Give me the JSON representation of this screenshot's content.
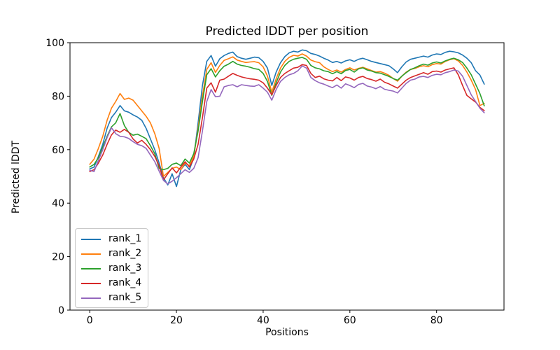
{
  "chart_data": {
    "type": "line",
    "title": "Predicted lDDT per position",
    "xlabel": "Positions",
    "ylabel": "Predicted lDDT",
    "xlim": [
      -4.55,
      95.55
    ],
    "ylim": [
      0,
      100
    ],
    "xticks": [
      0,
      20,
      40,
      60,
      80
    ],
    "yticks": [
      0,
      20,
      40,
      60,
      80,
      100
    ],
    "grid": false,
    "legend_position": "lower-left",
    "x": [
      0,
      1,
      2,
      3,
      4,
      5,
      6,
      7,
      8,
      9,
      10,
      11,
      12,
      13,
      14,
      15,
      16,
      17,
      18,
      19,
      20,
      21,
      22,
      23,
      24,
      25,
      26,
      27,
      28,
      29,
      30,
      31,
      32,
      33,
      34,
      35,
      36,
      37,
      38,
      39,
      40,
      41,
      42,
      43,
      44,
      45,
      46,
      47,
      48,
      49,
      50,
      51,
      52,
      53,
      54,
      55,
      56,
      57,
      58,
      59,
      60,
      61,
      62,
      63,
      64,
      65,
      66,
      67,
      68,
      69,
      70,
      71,
      72,
      73,
      74,
      75,
      76,
      77,
      78,
      79,
      80,
      81,
      82,
      83,
      84,
      85,
      86,
      87,
      88,
      89,
      90,
      91
    ],
    "series": [
      {
        "name": "rank_1",
        "color": "#1f77b4",
        "values": [
          52.8,
          53.5,
          57.5,
          62.0,
          68.0,
          72.0,
          74.0,
          76.5,
          74.5,
          74.0,
          73.0,
          72.2,
          71.0,
          68.0,
          64.0,
          60.0,
          55.0,
          49.5,
          46.8,
          51.0,
          46.2,
          52.5,
          54.5,
          52.5,
          57.0,
          70.0,
          84.0,
          93.0,
          95.2,
          91.2,
          94.0,
          95.2,
          96.0,
          96.5,
          94.8,
          94.2,
          93.8,
          94.2,
          94.6,
          94.4,
          93.0,
          90.5,
          84.0,
          89.0,
          92.5,
          94.8,
          96.2,
          96.8,
          96.5,
          97.3,
          97.0,
          96.0,
          95.6,
          95.0,
          94.2,
          93.5,
          92.6,
          93.0,
          92.4,
          93.2,
          93.6,
          93.0,
          93.8,
          94.2,
          93.6,
          93.0,
          92.6,
          92.2,
          91.8,
          91.4,
          90.2,
          88.8,
          91.0,
          92.8,
          93.8,
          94.2,
          94.6,
          95.0,
          94.6,
          95.4,
          95.8,
          95.6,
          96.4,
          96.8,
          96.6,
          96.2,
          95.4,
          94.2,
          92.5,
          89.5,
          87.9,
          84.5
        ]
      },
      {
        "name": "rank_2",
        "color": "#ff7f0e",
        "values": [
          54.5,
          56.5,
          60.5,
          65.0,
          71.0,
          75.5,
          78.0,
          81.0,
          78.8,
          79.3,
          78.5,
          76.5,
          74.5,
          72.5,
          70.0,
          66.0,
          60.5,
          50.0,
          51.5,
          53.0,
          53.5,
          52.5,
          55.0,
          54.0,
          57.5,
          68.0,
          80.0,
          90.0,
          92.5,
          88.9,
          91.5,
          93.4,
          94.0,
          94.7,
          93.5,
          93.0,
          92.6,
          92.8,
          92.9,
          92.5,
          91.0,
          87.5,
          81.5,
          86.5,
          90.5,
          93.0,
          94.5,
          95.3,
          95.0,
          95.8,
          95.0,
          93.5,
          92.9,
          92.5,
          91.0,
          90.0,
          89.2,
          89.8,
          89.0,
          90.0,
          90.6,
          89.8,
          90.4,
          90.8,
          90.2,
          89.6,
          89.0,
          89.2,
          88.6,
          87.8,
          86.6,
          85.6,
          87.5,
          89.0,
          90.0,
          90.4,
          91.0,
          91.4,
          91.0,
          91.8,
          92.2,
          92.0,
          93.0,
          93.6,
          94.0,
          93.2,
          91.5,
          89.0,
          86.0,
          82.5,
          76.5,
          77.3
        ]
      },
      {
        "name": "rank_3",
        "color": "#2ca02c",
        "values": [
          53.5,
          54.5,
          57.0,
          61.0,
          65.0,
          68.5,
          70.0,
          73.5,
          69.0,
          66.5,
          65.4,
          65.8,
          65.0,
          64.1,
          61.5,
          58.5,
          53.0,
          52.5,
          53.0,
          54.5,
          55.0,
          54.0,
          56.5,
          55.0,
          58.5,
          67.0,
          78.0,
          88.0,
          90.3,
          87.2,
          89.5,
          91.2,
          92.0,
          93.0,
          92.0,
          91.5,
          91.2,
          90.8,
          90.3,
          90.0,
          88.5,
          85.5,
          80.3,
          85.0,
          89.0,
          91.5,
          93.0,
          93.8,
          94.2,
          94.5,
          93.8,
          91.5,
          90.6,
          90.2,
          89.5,
          89.2,
          88.4,
          89.2,
          88.4,
          89.6,
          90.0,
          89.0,
          90.2,
          90.6,
          89.8,
          89.4,
          88.8,
          88.6,
          88.0,
          87.4,
          86.6,
          86.0,
          87.5,
          88.8,
          90.0,
          90.6,
          91.4,
          92.0,
          91.6,
          92.4,
          92.8,
          92.4,
          93.2,
          93.8,
          94.2,
          93.6,
          92.6,
          90.5,
          88.0,
          84.5,
          81.0,
          76.4
        ]
      },
      {
        "name": "rank_4",
        "color": "#d62728",
        "values": [
          51.8,
          52.5,
          55.0,
          58.0,
          62.0,
          65.5,
          67.3,
          66.5,
          67.6,
          66.5,
          64.0,
          62.5,
          63.5,
          62.0,
          60.0,
          57.5,
          54.0,
          48.7,
          51.0,
          53.2,
          51.3,
          53.5,
          55.5,
          53.5,
          56.5,
          62.0,
          72.0,
          83.0,
          85.0,
          81.5,
          86.0,
          86.4,
          87.5,
          88.5,
          87.8,
          87.2,
          86.8,
          86.5,
          86.3,
          86.0,
          85.0,
          83.0,
          80.5,
          84.0,
          87.0,
          88.5,
          89.5,
          90.5,
          90.8,
          91.8,
          91.5,
          88.5,
          87.0,
          87.5,
          86.5,
          86.0,
          85.7,
          87.0,
          85.8,
          87.2,
          86.8,
          86.0,
          87.0,
          87.4,
          86.6,
          86.2,
          85.6,
          86.4,
          85.2,
          84.6,
          83.8,
          83.0,
          84.5,
          86.0,
          87.0,
          87.6,
          88.2,
          88.8,
          88.2,
          89.2,
          89.4,
          89.0,
          89.8,
          90.2,
          90.6,
          88.0,
          84.0,
          80.3,
          79.0,
          77.8,
          75.8,
          74.6
        ]
      },
      {
        "name": "rank_5",
        "color": "#9467bd",
        "values": [
          52.3,
          51.8,
          56.0,
          60.0,
          64.5,
          68.2,
          66.0,
          65.0,
          64.8,
          64.2,
          63.0,
          62.0,
          61.5,
          60.5,
          58.0,
          55.5,
          52.0,
          48.5,
          47.2,
          48.2,
          49.5,
          51.0,
          52.5,
          51.5,
          53.0,
          57.0,
          67.0,
          78.0,
          82.5,
          79.8,
          80.0,
          83.5,
          84.0,
          84.3,
          83.5,
          84.3,
          84.0,
          83.8,
          83.7,
          84.3,
          83.0,
          81.5,
          78.5,
          82.5,
          85.5,
          87.0,
          88.0,
          88.5,
          89.5,
          91.3,
          90.5,
          87.0,
          85.8,
          85.0,
          84.5,
          83.8,
          83.2,
          84.2,
          83.0,
          84.6,
          84.0,
          83.2,
          84.4,
          84.8,
          83.8,
          83.4,
          82.8,
          83.6,
          82.6,
          82.2,
          81.9,
          81.2,
          83.0,
          84.8,
          86.0,
          86.4,
          87.2,
          87.4,
          87.0,
          87.8,
          88.2,
          88.0,
          88.8,
          89.2,
          89.8,
          89.4,
          87.5,
          84.0,
          80.5,
          78.0,
          75.5,
          73.8
        ]
      }
    ]
  }
}
